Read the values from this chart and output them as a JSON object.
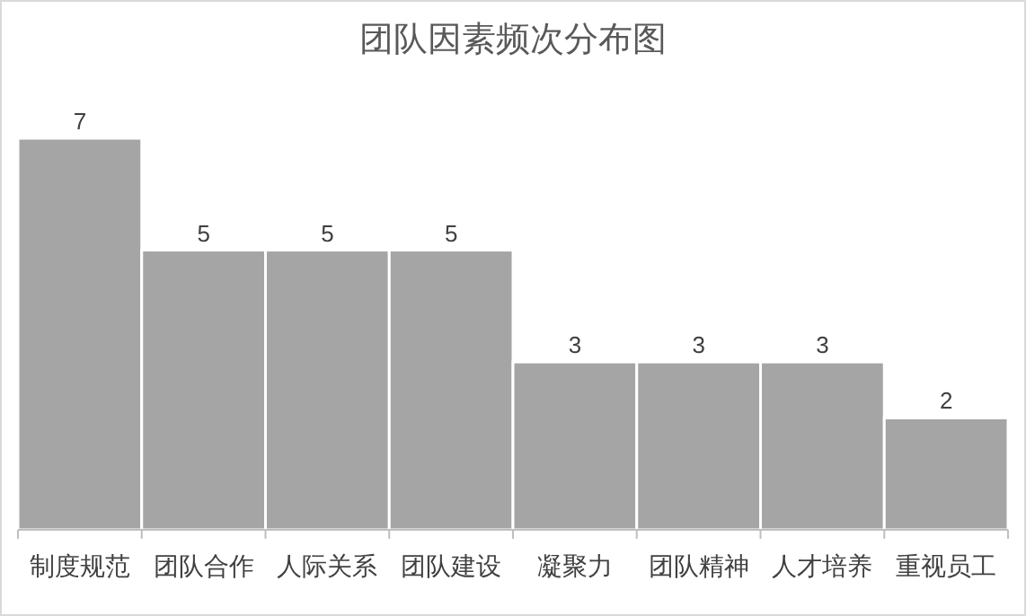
{
  "chart_data": {
    "type": "bar",
    "title": "团队因素频次分布图",
    "categories": [
      "制度规范",
      "团队合作",
      "人际关系",
      "团队建设",
      "凝聚力",
      "团队精神",
      "人才培养",
      "重视员工"
    ],
    "values": [
      7,
      5,
      5,
      5,
      3,
      3,
      3,
      2
    ],
    "color": "#a5a5a5",
    "data_labels": true
  }
}
